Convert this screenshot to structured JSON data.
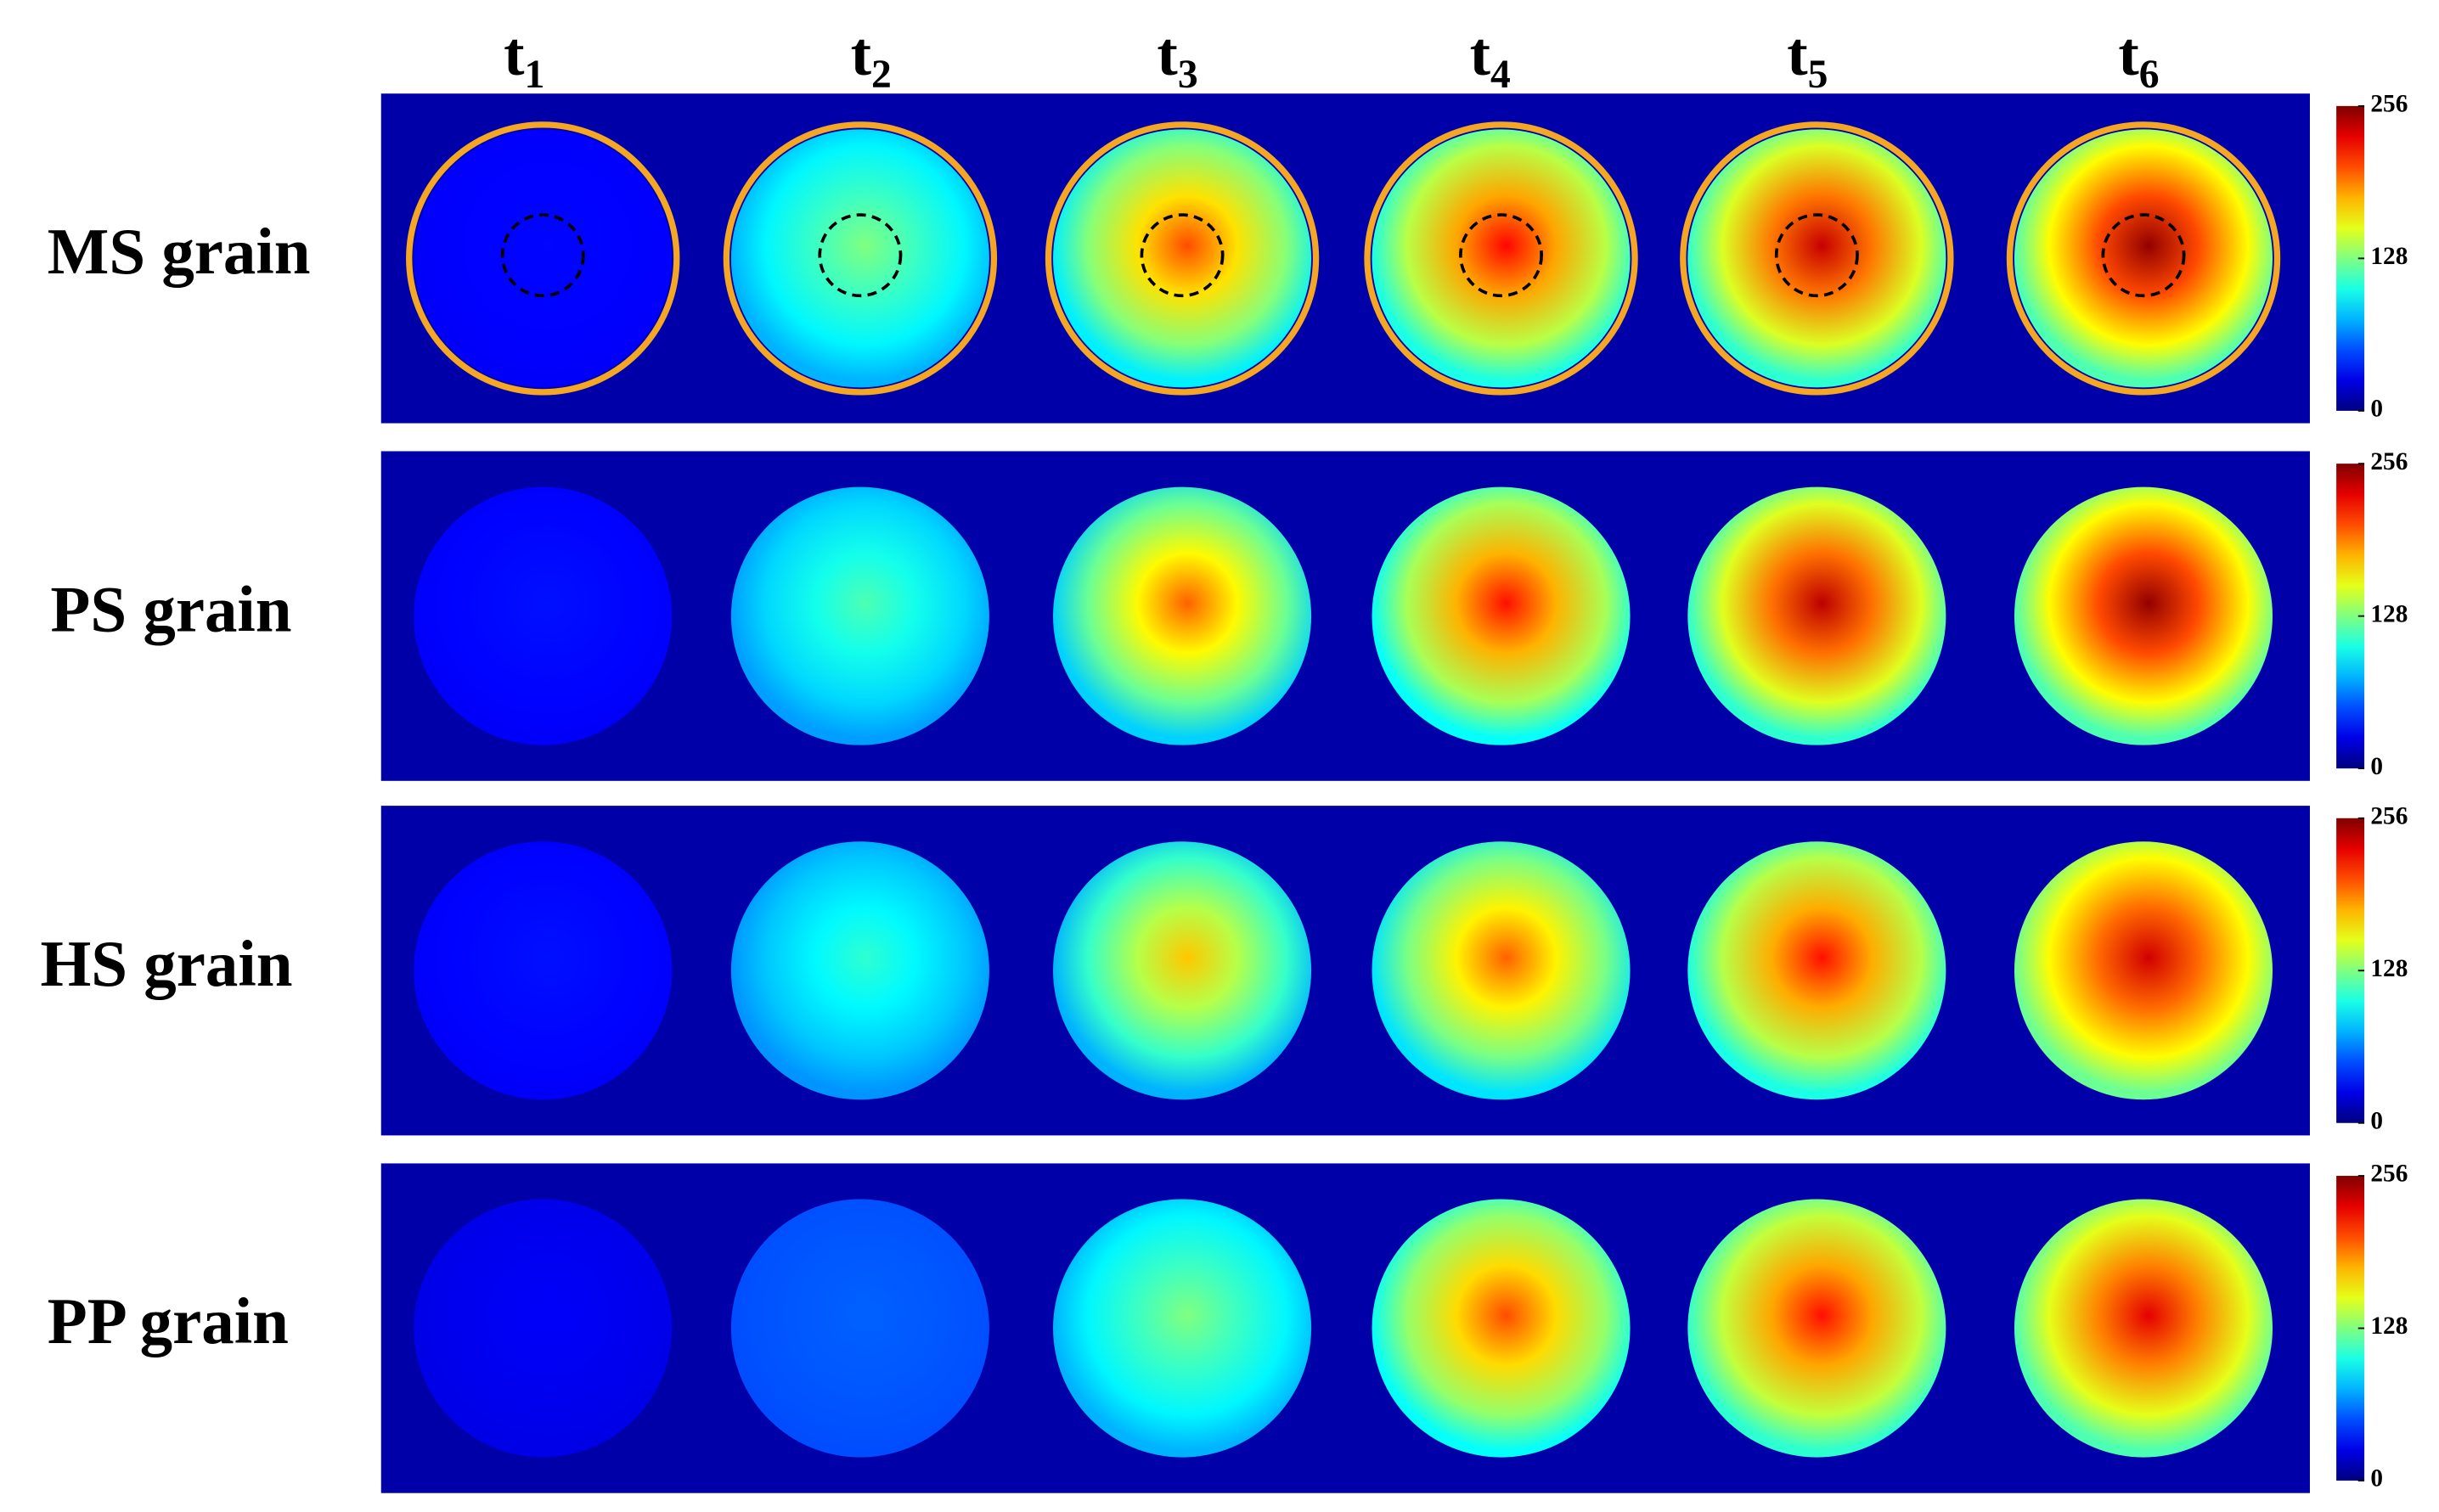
{
  "columns": [
    {
      "base": "t",
      "sub": "1"
    },
    {
      "base": "t",
      "sub": "2"
    },
    {
      "base": "t",
      "sub": "3"
    },
    {
      "base": "t",
      "sub": "4"
    },
    {
      "base": "t",
      "sub": "5"
    },
    {
      "base": "t",
      "sub": "6"
    }
  ],
  "rows": [
    "MS grain",
    "PS grain",
    "HS grain",
    "PP grain"
  ],
  "colorbar": {
    "clim": [
      0,
      256
    ],
    "cticks": [
      0,
      128,
      256
    ]
  }
}
